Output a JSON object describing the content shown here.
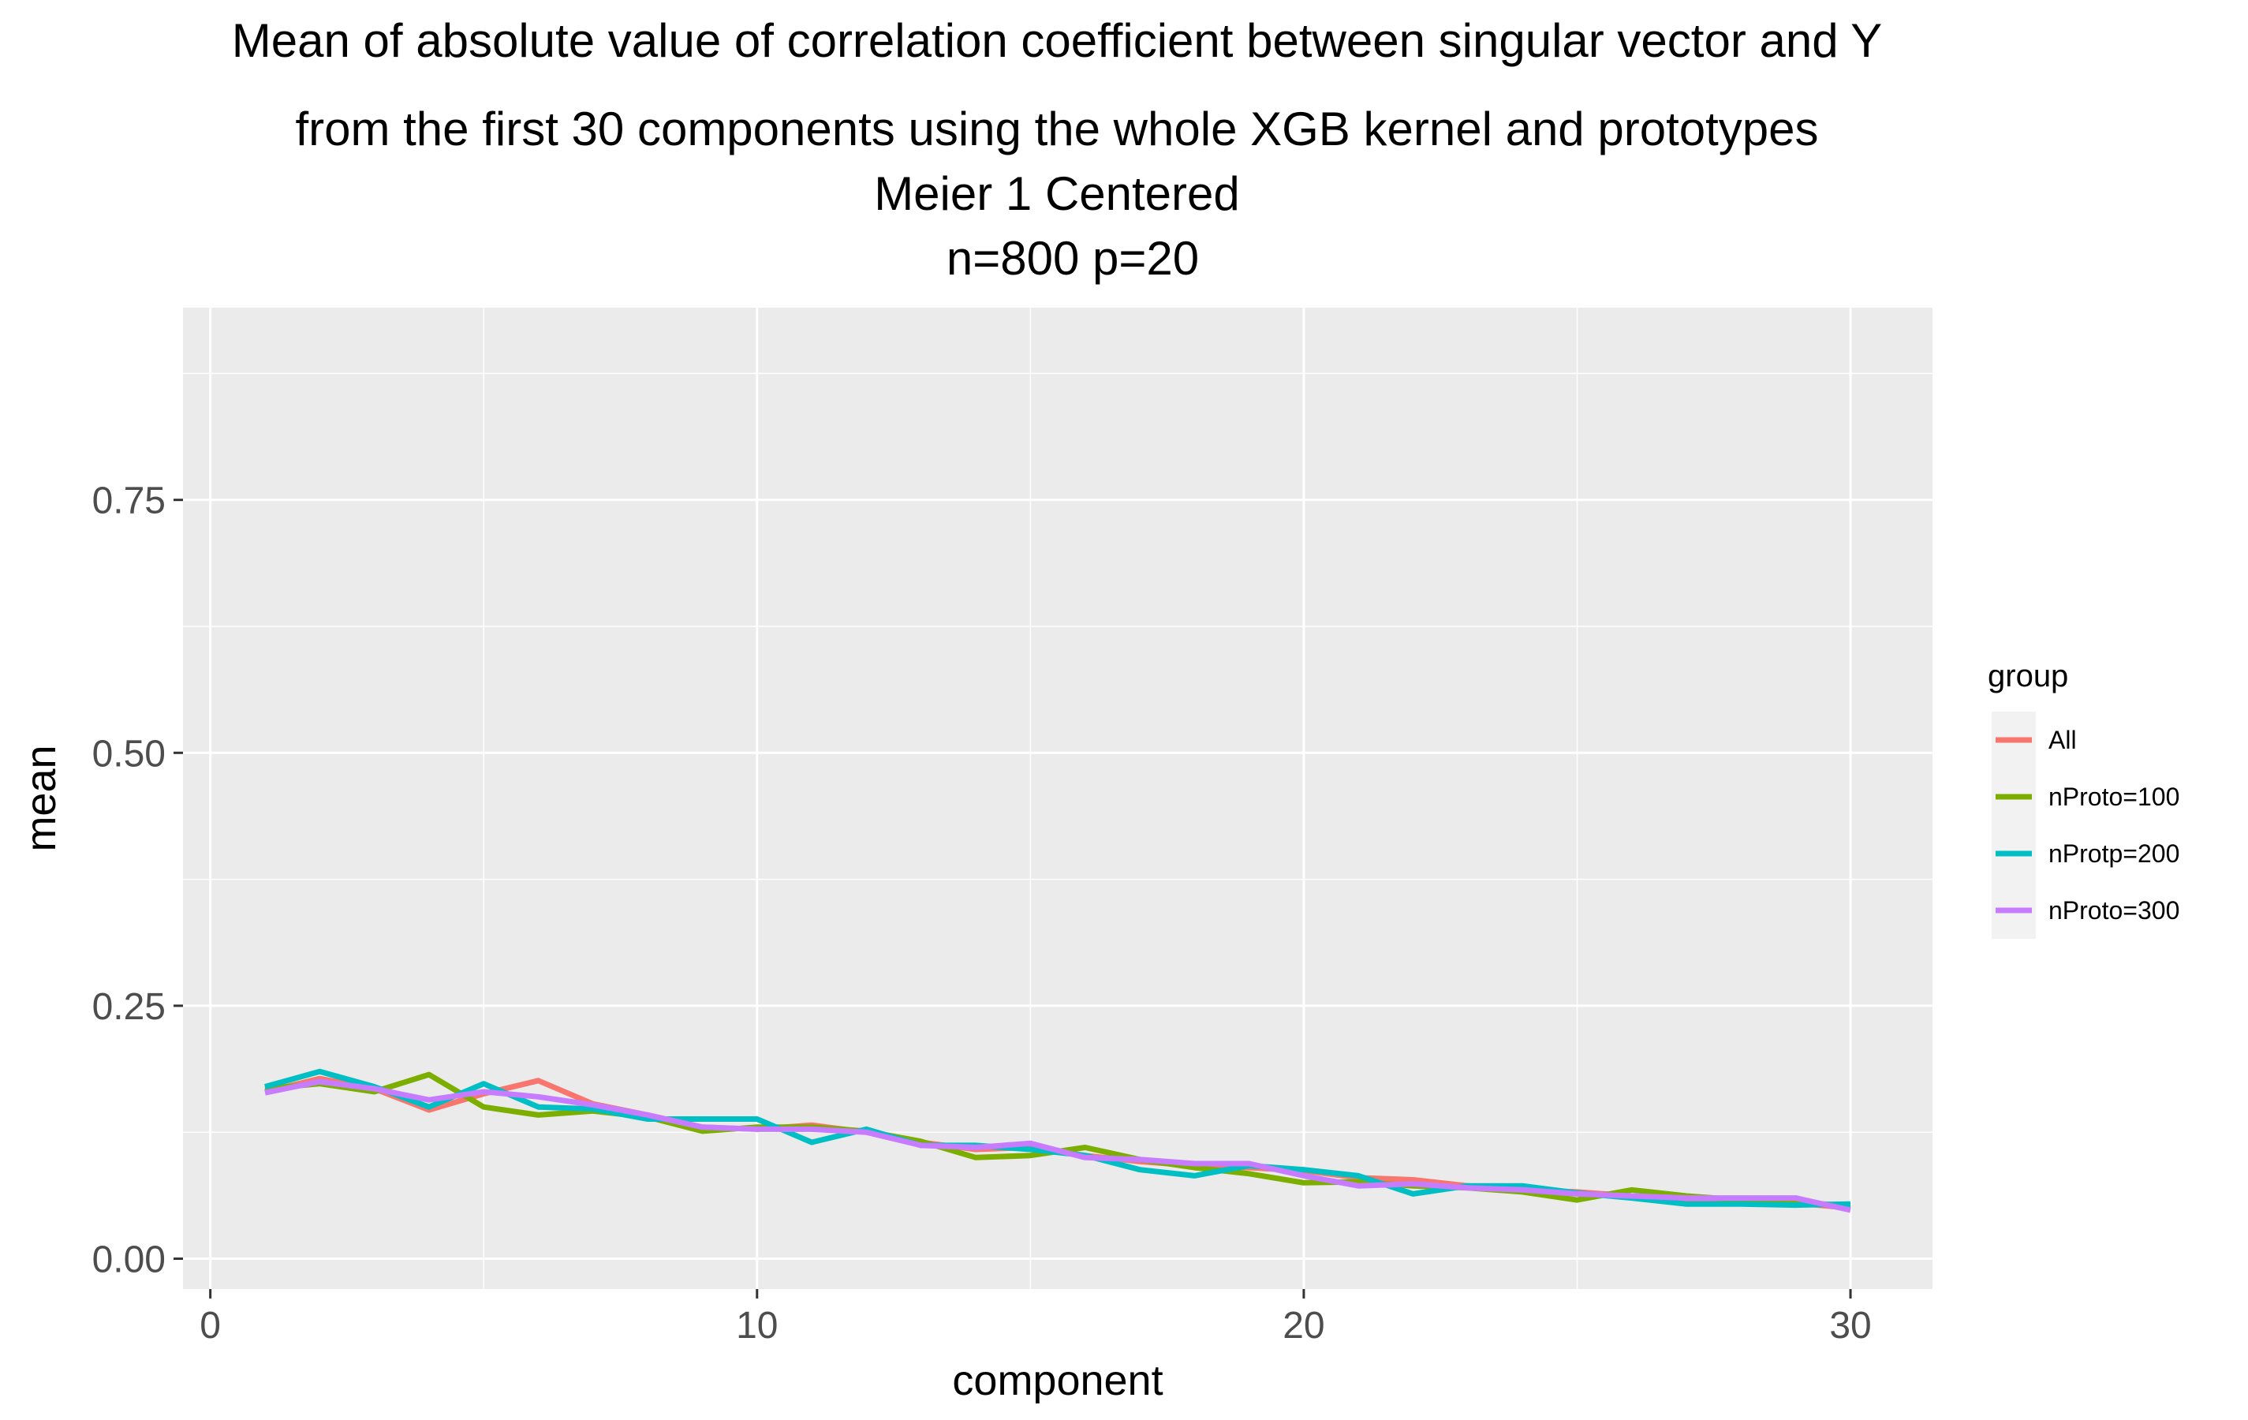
{
  "chart_data": {
    "type": "line",
    "title_lines": [
      "Mean of absolute value of correlation coefficient between singular vector and Y",
      "from the first 30 components using the whole XGB kernel and prototypes",
      "Meier 1 Centered",
      "n=800 p=20"
    ],
    "xlabel": "component",
    "ylabel": "mean",
    "xlim": [
      -0.5,
      31.5
    ],
    "ylim": [
      -0.03,
      0.94
    ],
    "x_ticks": [
      0,
      10,
      20,
      30
    ],
    "x_tick_labels": [
      "0",
      "10",
      "20",
      "30"
    ],
    "y_ticks": [
      0.0,
      0.25,
      0.5,
      0.75
    ],
    "y_tick_labels": [
      "0.00",
      "0.25",
      "0.50",
      "0.75"
    ],
    "grid": true,
    "background_color": "#ebebeb",
    "legend": {
      "title": "group",
      "position": "right"
    },
    "x": [
      1,
      2,
      3,
      4,
      5,
      6,
      7,
      8,
      9,
      10,
      11,
      12,
      13,
      14,
      15,
      16,
      17,
      18,
      19,
      20,
      21,
      22,
      23,
      24,
      25,
      26,
      27,
      28,
      29,
      30
    ],
    "series": [
      {
        "name": "All",
        "color": "#F8766D",
        "values": [
          0.165,
          0.178,
          0.168,
          0.147,
          0.163,
          0.176,
          0.153,
          0.142,
          0.13,
          0.128,
          0.132,
          0.125,
          0.115,
          0.108,
          0.11,
          0.102,
          0.096,
          0.092,
          0.09,
          0.087,
          0.08,
          0.078,
          0.072,
          0.068,
          0.066,
          0.062,
          0.058,
          0.056,
          0.055,
          0.05
        ]
      },
      {
        "name": "nProto=100",
        "color": "#7CAE00",
        "values": [
          0.168,
          0.173,
          0.165,
          0.182,
          0.15,
          0.142,
          0.146,
          0.14,
          0.126,
          0.13,
          0.13,
          0.126,
          0.116,
          0.1,
          0.102,
          0.11,
          0.098,
          0.09,
          0.084,
          0.075,
          0.076,
          0.072,
          0.07,
          0.066,
          0.058,
          0.068,
          0.062,
          0.058,
          0.056,
          0.052
        ]
      },
      {
        "name": "nProtp=200",
        "color": "#00BFC4",
        "values": [
          0.17,
          0.185,
          0.17,
          0.15,
          0.173,
          0.15,
          0.148,
          0.138,
          0.138,
          0.138,
          0.115,
          0.128,
          0.112,
          0.112,
          0.108,
          0.102,
          0.088,
          0.082,
          0.092,
          0.088,
          0.082,
          0.064,
          0.072,
          0.072,
          0.065,
          0.06,
          0.054,
          0.054,
          0.053,
          0.054
        ]
      },
      {
        "name": "nProto=300",
        "color": "#C77CFF",
        "values": [
          0.164,
          0.175,
          0.168,
          0.157,
          0.165,
          0.16,
          0.152,
          0.142,
          0.13,
          0.128,
          0.128,
          0.125,
          0.112,
          0.11,
          0.114,
          0.1,
          0.098,
          0.094,
          0.094,
          0.082,
          0.072,
          0.074,
          0.07,
          0.068,
          0.064,
          0.062,
          0.06,
          0.06,
          0.06,
          0.048
        ]
      }
    ]
  }
}
